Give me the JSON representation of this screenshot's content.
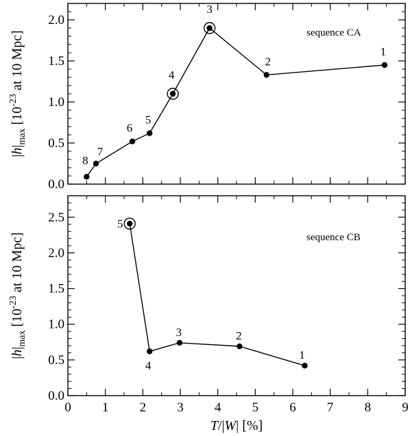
{
  "chart_data": [
    {
      "type": "line",
      "annotation": "sequence CA",
      "ylabel_parts": {
        "h": "h",
        "sub": "max",
        "pre": "[10",
        "exp": "-23",
        "post": " at 10 Mpc]"
      },
      "xlim": [
        0,
        9
      ],
      "ylim": [
        0,
        2.2
      ],
      "xticks": [
        0,
        1,
        2,
        3,
        4,
        5,
        6,
        7,
        8,
        9
      ],
      "yticks": [
        0.0,
        0.5,
        1.0,
        1.5,
        2.0
      ],
      "ytick_labels": [
        "0.0",
        "0.5",
        "1.0",
        "1.5",
        "2.0"
      ],
      "points": [
        {
          "label": "8",
          "x": 0.5,
          "y": 0.09,
          "circled": false
        },
        {
          "label": "7",
          "x": 0.75,
          "y": 0.25,
          "circled": false
        },
        {
          "label": "6",
          "x": 1.72,
          "y": 0.52,
          "circled": false
        },
        {
          "label": "5",
          "x": 2.18,
          "y": 0.62,
          "circled": false
        },
        {
          "label": "4",
          "x": 2.8,
          "y": 1.1,
          "circled": true
        },
        {
          "label": "3",
          "x": 3.78,
          "y": 1.9,
          "circled": true
        },
        {
          "label": "2",
          "x": 5.3,
          "y": 1.33,
          "circled": false
        },
        {
          "label": "1",
          "x": 8.45,
          "y": 1.45,
          "circled": false
        }
      ]
    },
    {
      "type": "line",
      "annotation": "sequence CB",
      "xlabel_parts": {
        "T": "T",
        "mid": "/|",
        "W": "W",
        "post": "| [%]"
      },
      "ylabel_parts": {
        "h": "h",
        "sub": "max",
        "pre": "[10",
        "exp": "-23",
        "post": " at 10 Mpc]"
      },
      "xlim": [
        0,
        9
      ],
      "ylim": [
        0,
        2.8
      ],
      "xticks": [
        0,
        1,
        2,
        3,
        4,
        5,
        6,
        7,
        8,
        9
      ],
      "xtick_labels": [
        "0",
        "1",
        "2",
        "3",
        "4",
        "5",
        "6",
        "7",
        "8",
        "9"
      ],
      "yticks": [
        0.0,
        0.5,
        1.0,
        1.5,
        2.0,
        2.5
      ],
      "ytick_labels": [
        "0.0",
        "0.5",
        "1.0",
        "1.5",
        "2.0",
        "2.5"
      ],
      "points": [
        {
          "label": "5",
          "x": 1.65,
          "y": 2.41,
          "circled": true
        },
        {
          "label": "4",
          "x": 2.18,
          "y": 0.62,
          "circled": false
        },
        {
          "label": "3",
          "x": 2.98,
          "y": 0.74,
          "circled": false
        },
        {
          "label": "2",
          "x": 4.58,
          "y": 0.69,
          "circled": false
        },
        {
          "label": "1",
          "x": 6.32,
          "y": 0.42,
          "circled": false
        }
      ]
    }
  ]
}
